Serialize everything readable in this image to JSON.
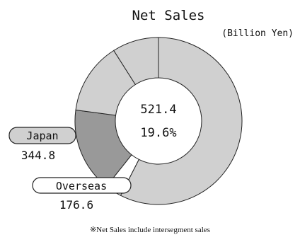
{
  "chart_data": {
    "type": "pie",
    "title": "Net Sales",
    "unit": "(Billion Yen)",
    "center_total": "521.4",
    "center_share": "19.6%",
    "slices": [
      {
        "key": "large",
        "value": 57.5,
        "color": "#d0d0d0"
      },
      {
        "key": "overseas",
        "value": 3.2,
        "color": "#ffffff"
      },
      {
        "key": "japan",
        "value": 16.4,
        "color": "#999999"
      },
      {
        "key": "mid",
        "value": 13.9,
        "color": "#d0d0d0"
      },
      {
        "key": "small",
        "value": 9.0,
        "color": "#d0d0d0"
      }
    ],
    "legend": [
      {
        "key": "japan",
        "label": "Japan",
        "value": "344.8",
        "color": "#d0d0d0"
      },
      {
        "key": "overseas",
        "label": "Overseas",
        "value": "176.6",
        "color": "#ffffff"
      }
    ],
    "footnote": "※Net Sales include intersegment sales"
  }
}
